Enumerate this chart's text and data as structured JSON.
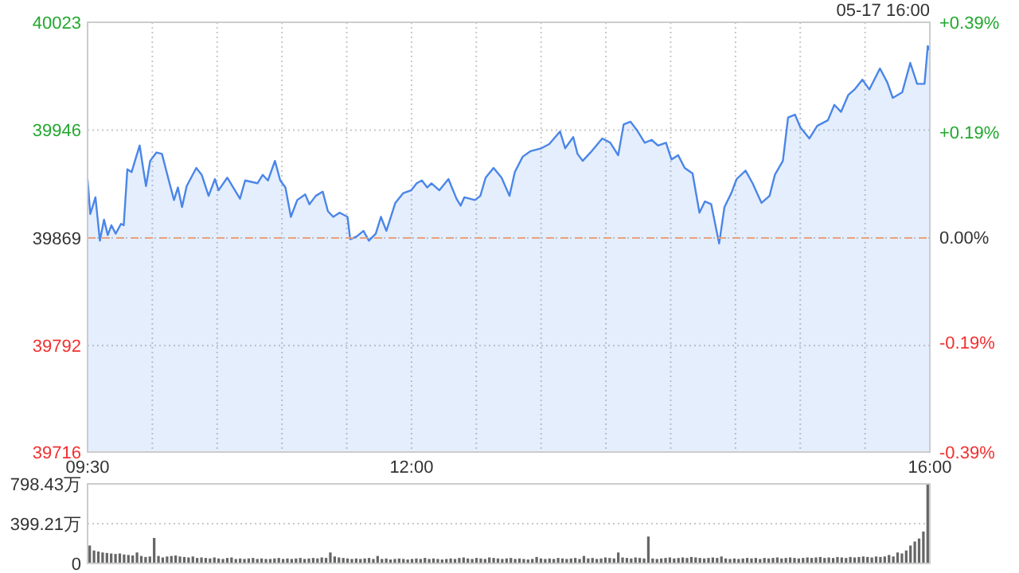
{
  "chart_data": [
    {
      "type": "area",
      "subtitle": "05-17 16:00",
      "color": "#4a86e8",
      "x": [
        9.5,
        9.521,
        9.561,
        9.595,
        9.627,
        9.656,
        9.684,
        9.717,
        9.758,
        9.779,
        9.807,
        9.84,
        9.869,
        9.902,
        9.93,
        9.951,
        9.983,
        10.032,
        10.074,
        10.127,
        10.167,
        10.197,
        10.229,
        10.265,
        10.339,
        10.381,
        10.434,
        10.483,
        10.511,
        10.578,
        10.676,
        10.716,
        10.811,
        10.852,
        10.892,
        10.946,
        10.987,
        11.027,
        11.069,
        11.118,
        11.18,
        11.212,
        11.261,
        11.315,
        11.355,
        11.396,
        11.445,
        11.506,
        11.527,
        11.577,
        11.629,
        11.671,
        11.724,
        11.764,
        11.806,
        11.875,
        11.937,
        11.998,
        12.04,
        12.08,
        12.121,
        12.154,
        12.215,
        12.285,
        12.347,
        12.379,
        12.408,
        12.489,
        12.531,
        12.572,
        12.633,
        12.695,
        12.756,
        12.797,
        12.858,
        12.92,
        13.002,
        13.063,
        13.146,
        13.186,
        13.248,
        13.281,
        13.321,
        13.391,
        13.472,
        13.534,
        13.595,
        13.637,
        13.69,
        13.739,
        13.8,
        13.853,
        13.902,
        13.964,
        14.006,
        14.058,
        14.108,
        14.169,
        14.222,
        14.264,
        14.313,
        14.374,
        14.415,
        14.468,
        14.509,
        14.578,
        14.632,
        14.701,
        14.763,
        14.804,
        14.866,
        14.906,
        14.959,
        15.001,
        15.07,
        15.131,
        15.213,
        15.263,
        15.315,
        15.37,
        15.419,
        15.48,
        15.533,
        15.615,
        15.672,
        15.714,
        15.787,
        15.849,
        15.902,
        15.959,
        15.984,
        16
      ],
      "values": [
        39911,
        39886,
        39898,
        39867,
        39882,
        39871,
        39878,
        39872,
        39879,
        39878,
        39918,
        39916,
        39925,
        39935,
        39918,
        39906,
        39924,
        39930,
        39929,
        39910,
        39896,
        39905,
        39891,
        39906,
        39919,
        39914,
        39899,
        39911,
        39903,
        39912,
        39897,
        39910,
        39908,
        39914,
        39910,
        39924,
        39910,
        39905,
        39884,
        39896,
        39900,
        39893,
        39899,
        39902,
        39888,
        39884,
        39887,
        39884,
        39868,
        39870,
        39874,
        39867,
        39872,
        39884,
        39874,
        39894,
        39901,
        39903,
        39908,
        39910,
        39905,
        39908,
        39903,
        39911,
        39897,
        39892,
        39898,
        39896,
        39899,
        39912,
        39919,
        39912,
        39899,
        39916,
        39927,
        39931,
        39933,
        39936,
        39945,
        39933,
        39941,
        39929,
        39924,
        39931,
        39940,
        39937,
        39928,
        39950,
        39952,
        39946,
        39937,
        39939,
        39935,
        39937,
        39925,
        39928,
        39919,
        39915,
        39887,
        39895,
        39893,
        39865,
        39891,
        39901,
        39911,
        39917,
        39908,
        39894,
        39899,
        39914,
        39924,
        39955,
        39957,
        39948,
        39940,
        39949,
        39953,
        39964,
        39959,
        39971,
        39975,
        39982,
        39975,
        39990,
        39980,
        39969,
        39973,
        39994,
        39979,
        39979,
        40006,
        40003
      ],
      "xlim": [
        9.5,
        16
      ],
      "xticks": [
        {
          "value": 9.5,
          "label": "09:30"
        },
        {
          "value": 10,
          "label": null
        },
        {
          "value": 10.5,
          "label": null
        },
        {
          "value": 11,
          "label": null
        },
        {
          "value": 11.5,
          "label": null
        },
        {
          "value": 12,
          "label": "12:00"
        },
        {
          "value": 12.5,
          "label": null
        },
        {
          "value": 13,
          "label": null
        },
        {
          "value": 13.5,
          "label": null
        },
        {
          "value": 14,
          "label": null
        },
        {
          "value": 14.5,
          "label": null
        },
        {
          "value": 15,
          "label": null
        },
        {
          "value": 15.5,
          "label": null
        },
        {
          "value": 16,
          "label": "16:00"
        }
      ],
      "ylim": [
        39716,
        40023
      ],
      "yticks": [
        40023,
        39946,
        39869,
        39792,
        39716
      ],
      "y2lim": [
        -0.39,
        0.39
      ],
      "y2ticks": [
        {
          "value": 0.39,
          "label": "+0.39%"
        },
        {
          "value": 0.19,
          "label": "+0.19%"
        },
        {
          "value": 0,
          "label": "0.00%"
        },
        {
          "value": -0.19,
          "label": "-0.19%"
        },
        {
          "value": -0.39,
          "label": "-0.39%"
        }
      ],
      "ref_lines": [
        {
          "axis": "y",
          "value": 39869,
          "color": "#e8a080",
          "line_style": "dashed"
        }
      ],
      "grid": true
    },
    {
      "type": "bar",
      "color": "#666666",
      "tick_labels": "y",
      "grid": "y",
      "categories": [
        null,
        null,
        null,
        null,
        null,
        null,
        null,
        null,
        null,
        null,
        null,
        null,
        null,
        null,
        null,
        null,
        null,
        null,
        null,
        null,
        null,
        null,
        null,
        null,
        null,
        null,
        null,
        null,
        null,
        null,
        null,
        null,
        null,
        null,
        null,
        null,
        null,
        null,
        null,
        null,
        null,
        null,
        null,
        null,
        null,
        null,
        null,
        null,
        null,
        null,
        null,
        null,
        null,
        null,
        null,
        null,
        null,
        null,
        null,
        null,
        null,
        null,
        null,
        null,
        null,
        null,
        null,
        null,
        null,
        null,
        null,
        null,
        null,
        null,
        null,
        null,
        null,
        null,
        null,
        null,
        null,
        null,
        null,
        null,
        null,
        null,
        null,
        null,
        null,
        null,
        null,
        null,
        null,
        null,
        null,
        null,
        null,
        null,
        null,
        null,
        null,
        null,
        null,
        null,
        null,
        null,
        null,
        null,
        null,
        null,
        null,
        null,
        null,
        null,
        null,
        null,
        null,
        null,
        null,
        null,
        null,
        null,
        null,
        null,
        null,
        null,
        null,
        null,
        null,
        null,
        null,
        null,
        null,
        null,
        null,
        null,
        null,
        null,
        null,
        null,
        null,
        null,
        null,
        null,
        null,
        null,
        null,
        null,
        null,
        null,
        null,
        null,
        null,
        null,
        null,
        null,
        null,
        null,
        null,
        null,
        null,
        null,
        null,
        null,
        null,
        null,
        null,
        null,
        null,
        null,
        null,
        null,
        null,
        null,
        null,
        null,
        null,
        null,
        null,
        null,
        null,
        null,
        null,
        null,
        null,
        null,
        null,
        null,
        null,
        null,
        null,
        null,
        null,
        null,
        null,
        null
      ],
      "values": [
        180,
        130,
        120,
        110,
        105,
        100,
        95,
        100,
        90,
        85,
        80,
        110,
        75,
        65,
        70,
        256,
        75,
        60,
        70,
        75,
        80,
        70,
        65,
        60,
        70,
        55,
        60,
        55,
        50,
        60,
        50,
        45,
        55,
        60,
        45,
        50,
        45,
        50,
        55,
        45,
        50,
        45,
        45,
        50,
        55,
        45,
        50,
        45,
        50,
        55,
        45,
        50,
        55,
        50,
        60,
        55,
        110,
        70,
        60,
        55,
        50,
        45,
        50,
        45,
        50,
        55,
        45,
        75,
        45,
        50,
        40,
        45,
        50,
        45,
        40,
        45,
        50,
        45,
        55,
        45,
        50,
        45,
        40,
        45,
        50,
        45,
        55,
        60,
        50,
        45,
        55,
        50,
        45,
        60,
        55,
        50,
        45,
        50,
        55,
        45,
        50,
        45,
        40,
        45,
        65,
        50,
        45,
        50,
        45,
        55,
        50,
        45,
        50,
        55,
        45,
        75,
        50,
        55,
        45,
        50,
        60,
        55,
        50,
        110,
        60,
        55,
        50,
        60,
        55,
        50,
        270,
        50,
        45,
        50,
        55,
        60,
        50,
        55,
        60,
        55,
        65,
        60,
        55,
        50,
        55,
        60,
        55,
        70,
        50,
        45,
        50,
        45,
        50,
        55,
        50,
        55,
        45,
        55,
        50,
        55,
        60,
        50,
        55,
        60,
        55,
        50,
        55,
        60,
        55,
        60,
        65,
        55,
        60,
        55,
        65,
        60,
        55,
        65,
        60,
        65,
        70,
        65,
        60,
        70,
        65,
        70,
        85,
        70,
        110,
        100,
        130,
        180,
        220,
        250,
        320,
        798.43
      ],
      "ylim": [
        0,
        798.43
      ],
      "yticks": [
        0,
        {
          "value": 399.21,
          "label": "399.21万"
        },
        {
          "value": 798.43,
          "label": "798.43万"
        }
      ]
    }
  ]
}
